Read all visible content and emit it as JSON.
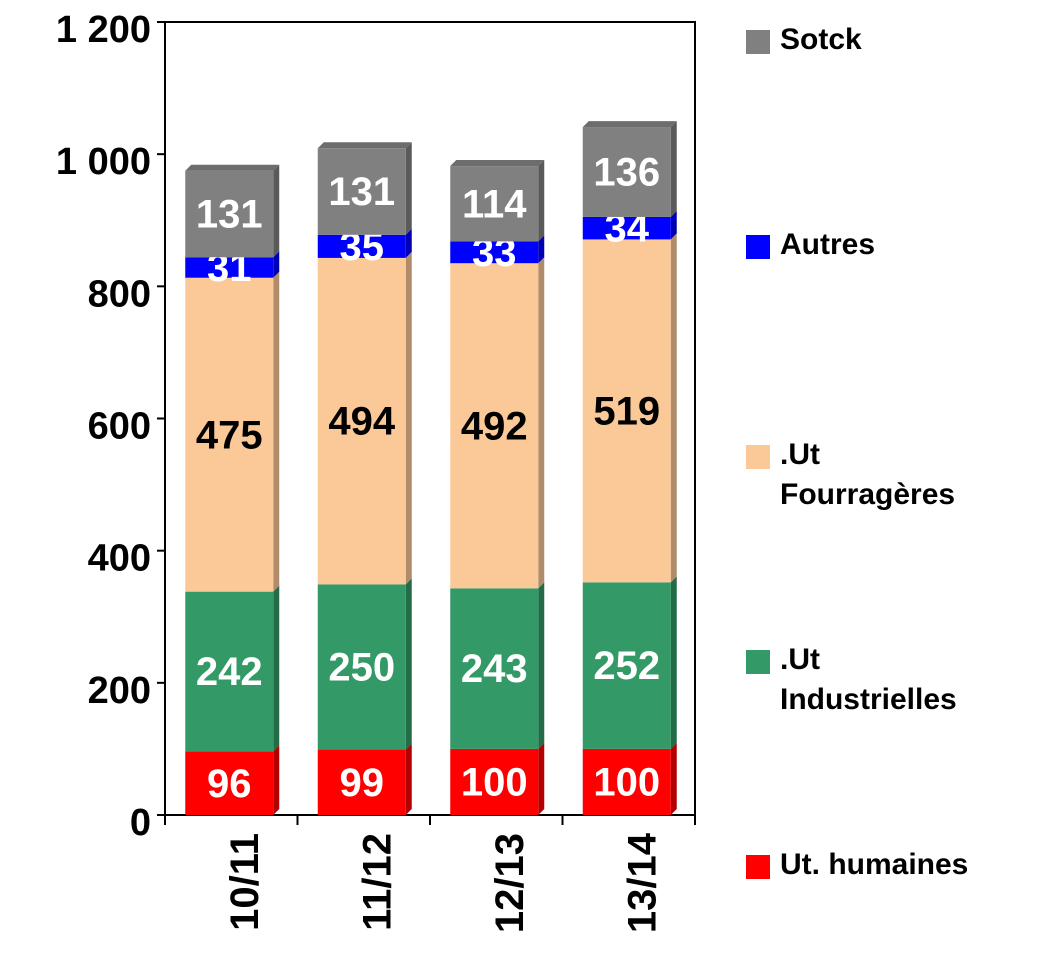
{
  "chart_data": {
    "type": "stacked_bar",
    "categories": [
      "10/11",
      "11/12",
      "12/13",
      "13/14"
    ],
    "series": [
      {
        "name": "Ut. humaines",
        "color": "#ff0000",
        "label_color": "#ffffff",
        "values": [
          96,
          99,
          100,
          100
        ]
      },
      {
        "name": ".Ut Industrielles",
        "color": "#339966",
        "label_color": "#ffffff",
        "values": [
          242,
          250,
          243,
          252
        ]
      },
      {
        "name": ".Ut Fourragères",
        "color": "#fbc898",
        "label_color": "#000000",
        "values": [
          475,
          494,
          492,
          519
        ]
      },
      {
        "name": "Autres",
        "color": "#0000ff",
        "label_color": "#ffffff",
        "values": [
          31,
          35,
          33,
          34
        ]
      },
      {
        "name": "Sotck",
        "color": "#808080",
        "label_color": "#ffffff",
        "values": [
          131,
          131,
          114,
          136
        ]
      }
    ],
    "ylim": [
      0,
      1200
    ],
    "yticks": [
      0,
      200,
      400,
      600,
      800,
      {
        "value": 1000,
        "label": "1 000"
      },
      {
        "value": 1200,
        "label": "1 200"
      }
    ],
    "legend": "right"
  }
}
